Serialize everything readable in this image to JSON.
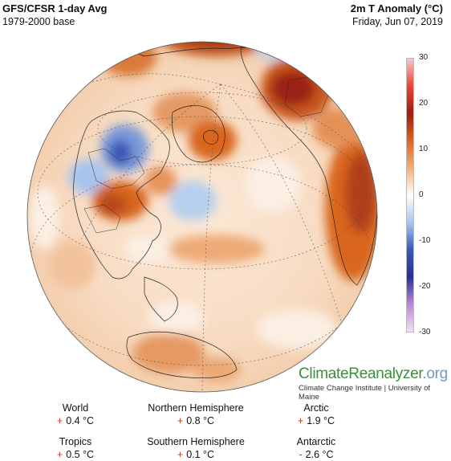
{
  "header": {
    "title_left": "GFS/CFSR 1-day Avg",
    "subtitle_left": "1979-2000 base",
    "title_right": "2m T Anomaly (°C)",
    "subtitle_right": "Friday, Jun 07, 2019"
  },
  "scale": {
    "labels": [
      "30",
      "20",
      "10",
      "0",
      "-10",
      "-20",
      "-30"
    ],
    "values": [
      30,
      20,
      10,
      0,
      -10,
      -20,
      -30
    ],
    "colors": [
      "#f6c8c8",
      "#e8443a",
      "#9e1c14",
      "#d9661e",
      "#f0b07a",
      "#ffffff",
      "#a6c8ec",
      "#3b57b8",
      "#2c2f8f",
      "#b88ad6",
      "#ece0f4"
    ]
  },
  "branding": {
    "name": "ClimateReanalyzer",
    "tld": ".org",
    "institute": "Climate Change Institute | University of Maine"
  },
  "stats": [
    {
      "label": "World",
      "sign": "+",
      "value": "0.4 °C"
    },
    {
      "label": "Northern Hemisphere",
      "sign": "+",
      "value": "0.8 °C"
    },
    {
      "label": "Arctic",
      "sign": "+",
      "value": "1.9 °C"
    },
    {
      "label": "Tropics",
      "sign": "+",
      "value": "0.5 °C"
    },
    {
      "label": "Southern Hemisphere",
      "sign": "+",
      "value": "0.1 °C"
    },
    {
      "label": "Antarctic",
      "sign": "-",
      "value": "2.6 °C"
    }
  ],
  "colors": {
    "warm_strong": "#8e1d10",
    "warm": "#d9661e",
    "warm_light": "#f3c199",
    "neutral": "#fdf3ea",
    "cool": "#a9c8ec",
    "cool_strong": "#2d4fa8",
    "brand_green": "#3a8f3a",
    "sign_red": "#c0392b"
  }
}
